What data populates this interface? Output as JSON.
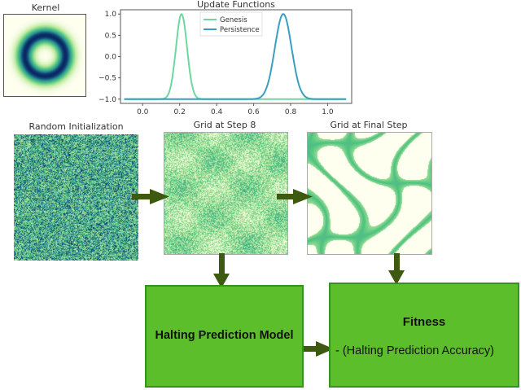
{
  "kernel": {
    "title": "Kernel"
  },
  "update_plot": {
    "title": "Update Functions",
    "legend": [
      {
        "name": "Genesis",
        "color": "#6fd6a0"
      },
      {
        "name": "Persistence",
        "color": "#3a9fbf"
      }
    ],
    "x_ticks": [
      "0.0",
      "0.2",
      "0.4",
      "0.6",
      "0.8",
      "1.0"
    ],
    "y_ticks": [
      "1.0",
      "0.5",
      "0.0",
      "−0.5",
      "−1.0"
    ],
    "xlim": [
      -0.12,
      1.13
    ],
    "ylim": [
      -1.1,
      1.1
    ],
    "genesis": {
      "mu": 0.21,
      "sigma": 0.03
    },
    "persistence": {
      "mu": 0.76,
      "sigma": 0.045
    }
  },
  "grids": [
    {
      "title": "Random Initialization"
    },
    {
      "title": "Grid at Step 8"
    },
    {
      "title": "Grid at Final Step"
    }
  ],
  "halting_box": {
    "label": "Halting Prediction Model"
  },
  "fitness_box": {
    "title": "Fitness",
    "formula": "- (Halting Prediction Accuracy)"
  },
  "colors": {
    "arrow": "#3d5a10",
    "box_fill": "#5dbe2c",
    "box_border": "#35921f"
  }
}
